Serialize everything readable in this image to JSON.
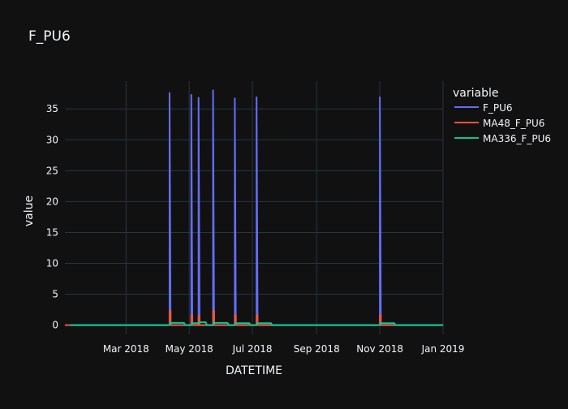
{
  "colors": {
    "background": "#111111",
    "grid": "#283442",
    "zeroline": "#283442",
    "text": "#f2f5fa"
  },
  "chart_data": {
    "type": "line",
    "title": "F_PU6",
    "xlabel": "DATETIME",
    "ylabel": "value",
    "legend_title": "variable",
    "legend_position": "top-right",
    "grid": true,
    "xlim": [
      "2018-01-01",
      "2019-01-01"
    ],
    "ylim": [
      -1.5,
      39.5
    ],
    "x_ticks": [
      {
        "value": "2018-03-01",
        "label": "Mar 2018"
      },
      {
        "value": "2018-05-01",
        "label": "May 2018"
      },
      {
        "value": "2018-07-01",
        "label": "Jul 2018"
      },
      {
        "value": "2018-09-01",
        "label": "Sep 2018"
      },
      {
        "value": "2018-11-01",
        "label": "Nov 2018"
      },
      {
        "value": "2019-01-01",
        "label": "Jan 2019"
      }
    ],
    "y_ticks": [
      0,
      5,
      10,
      15,
      20,
      25,
      30,
      35
    ],
    "series": [
      {
        "name": "F_PU6",
        "color": "#636efa",
        "points": [
          [
            "2018-01-06",
            0
          ],
          [
            "2018-04-12",
            0
          ],
          [
            "2018-04-12",
            37.6
          ],
          [
            "2018-04-13",
            0
          ],
          [
            "2018-05-03",
            0
          ],
          [
            "2018-05-03",
            37.3
          ],
          [
            "2018-05-04",
            0
          ],
          [
            "2018-05-10",
            0
          ],
          [
            "2018-05-10",
            36.8
          ],
          [
            "2018-05-11",
            0
          ],
          [
            "2018-05-24",
            0
          ],
          [
            "2018-05-24",
            38.0
          ],
          [
            "2018-05-25",
            0
          ],
          [
            "2018-06-14",
            0
          ],
          [
            "2018-06-14",
            36.7
          ],
          [
            "2018-06-15",
            0
          ],
          [
            "2018-07-05",
            0
          ],
          [
            "2018-07-05",
            36.9
          ],
          [
            "2018-07-06",
            0
          ],
          [
            "2018-11-01",
            0
          ],
          [
            "2018-11-01",
            36.9
          ],
          [
            "2018-11-02",
            0
          ],
          [
            "2019-01-05",
            0
          ]
        ]
      },
      {
        "name": "MA48_F_PU6",
        "color": "#ef553b",
        "points": [
          [
            "2017-12-25",
            0
          ],
          [
            "2018-04-12",
            0
          ],
          [
            "2018-04-12",
            2.3
          ],
          [
            "2018-04-13",
            2.3
          ],
          [
            "2018-04-13",
            0.2
          ],
          [
            "2018-04-14",
            0
          ],
          [
            "2018-05-03",
            0
          ],
          [
            "2018-05-03",
            1.6
          ],
          [
            "2018-05-04",
            1.6
          ],
          [
            "2018-05-04",
            0
          ],
          [
            "2018-05-10",
            0
          ],
          [
            "2018-05-10",
            1.5
          ],
          [
            "2018-05-11",
            1.5
          ],
          [
            "2018-05-11",
            0
          ],
          [
            "2018-05-24",
            0
          ],
          [
            "2018-05-24",
            2.3
          ],
          [
            "2018-05-25",
            2.3
          ],
          [
            "2018-05-25",
            0
          ],
          [
            "2018-06-14",
            0
          ],
          [
            "2018-06-14",
            1.6
          ],
          [
            "2018-06-15",
            1.6
          ],
          [
            "2018-06-15",
            0
          ],
          [
            "2018-07-05",
            0
          ],
          [
            "2018-07-05",
            1.6
          ],
          [
            "2018-07-06",
            1.6
          ],
          [
            "2018-07-06",
            0
          ],
          [
            "2018-11-01",
            0
          ],
          [
            "2018-11-01",
            1.6
          ],
          [
            "2018-11-02",
            1.6
          ],
          [
            "2018-11-02",
            0
          ],
          [
            "2019-01-05",
            0
          ]
        ]
      },
      {
        "name": "MA336_F_PU6",
        "color": "#00cc96",
        "points": [
          [
            "2018-01-06",
            0
          ],
          [
            "2018-04-12",
            0
          ],
          [
            "2018-04-13",
            0.35
          ],
          [
            "2018-04-26",
            0.35
          ],
          [
            "2018-04-27",
            0
          ],
          [
            "2018-05-03",
            0
          ],
          [
            "2018-05-04",
            0.3
          ],
          [
            "2018-05-10",
            0.3
          ],
          [
            "2018-05-11",
            0.45
          ],
          [
            "2018-05-17",
            0.45
          ],
          [
            "2018-05-18",
            0
          ],
          [
            "2018-05-24",
            0
          ],
          [
            "2018-05-25",
            0.35
          ],
          [
            "2018-06-07",
            0.35
          ],
          [
            "2018-06-08",
            0
          ],
          [
            "2018-06-14",
            0
          ],
          [
            "2018-06-15",
            0.3
          ],
          [
            "2018-06-28",
            0.3
          ],
          [
            "2018-06-29",
            0
          ],
          [
            "2018-07-05",
            0
          ],
          [
            "2018-07-06",
            0.3
          ],
          [
            "2018-07-19",
            0.3
          ],
          [
            "2018-07-20",
            0
          ],
          [
            "2018-11-01",
            0
          ],
          [
            "2018-11-02",
            0.3
          ],
          [
            "2018-11-15",
            0.3
          ],
          [
            "2018-11-16",
            0
          ],
          [
            "2019-01-05",
            0
          ]
        ]
      }
    ]
  }
}
